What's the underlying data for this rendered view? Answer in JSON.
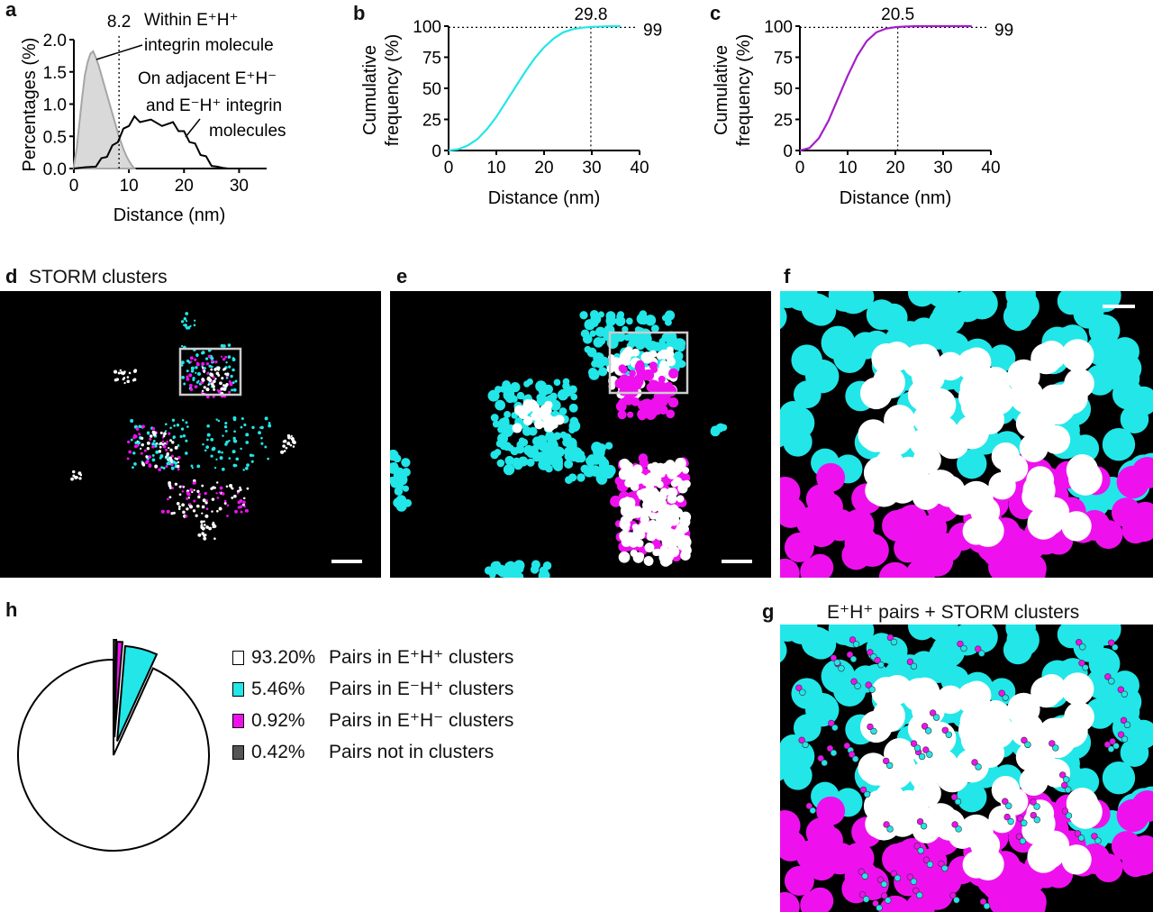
{
  "panel_labels": {
    "a": "a",
    "b": "b",
    "c": "c",
    "d": "d",
    "e": "e",
    "f": "f",
    "g": "g",
    "h": "h"
  },
  "panel_titles": {
    "d": "STORM clusters",
    "g": "E⁺H⁺ pairs + STORM clusters"
  },
  "colors": {
    "cyan": "#22e6e8",
    "magenta": "#ee11ee",
    "purple": "#a21ec9",
    "white": "#ffffff",
    "gray_fill": "#d9d9d9",
    "gray_line": "#a6a6a6",
    "dark": "#555555"
  },
  "chart_data": [
    {
      "id": "a",
      "type": "area",
      "xlabel": "Distance (nm)",
      "ylabel": "Percentages (%)",
      "xlim": [
        0,
        35
      ],
      "ylim": [
        0,
        2.0
      ],
      "xticks": [
        "0",
        "10",
        "20",
        "30"
      ],
      "yticks": [
        "0.0",
        "0.5",
        "1.0",
        "1.5",
        "2.0"
      ],
      "vline": 8.2,
      "vline_label": "8.2",
      "series": [
        {
          "name": "Within E⁺H⁺ integrin molecule",
          "name_lines": [
            "Within E⁺H⁺",
            "integrin molecule"
          ],
          "x": [
            0,
            0.5,
            1,
            1.5,
            2,
            2.5,
            3,
            3.5,
            4,
            4.5,
            5,
            5.5,
            6,
            6.5,
            7,
            7.5,
            8,
            8.5,
            9,
            9.5,
            10,
            10.5,
            11
          ],
          "y": [
            0.05,
            0.3,
            0.7,
            1.1,
            1.45,
            1.65,
            1.78,
            1.82,
            1.72,
            1.6,
            1.45,
            1.3,
            1.15,
            1.0,
            0.85,
            0.7,
            0.55,
            0.42,
            0.3,
            0.2,
            0.12,
            0.05,
            0.0
          ]
        },
        {
          "name": "On adjacent E⁺H⁻ and E⁻H⁺ integrin molecules",
          "name_lines": [
            "On adjacent E⁺H⁻",
            "and E⁻H⁺ integrin",
            "molecules"
          ],
          "x": [
            0,
            2,
            4,
            5,
            6,
            7,
            8,
            9,
            10,
            11,
            12,
            14,
            16,
            18,
            19,
            20,
            21,
            22,
            23,
            24,
            25,
            26,
            27,
            28
          ],
          "y": [
            0.0,
            0.02,
            0.07,
            0.12,
            0.22,
            0.32,
            0.45,
            0.58,
            0.7,
            0.77,
            0.76,
            0.72,
            0.7,
            0.68,
            0.62,
            0.54,
            0.45,
            0.35,
            0.25,
            0.15,
            0.08,
            0.03,
            0.01,
            0.0
          ]
        }
      ]
    },
    {
      "id": "b",
      "type": "line",
      "xlabel": "Distance (nm)",
      "ylabel_lines": [
        "Cumulative",
        "frequency (%)"
      ],
      "xlim": [
        0,
        40
      ],
      "ylim": [
        0,
        100
      ],
      "xticks": [
        "0",
        "10",
        "20",
        "30",
        "40"
      ],
      "yticks": [
        "0",
        "25",
        "50",
        "75",
        "100"
      ],
      "vline": 29.8,
      "vline_label": "29.8",
      "hline": 99,
      "hline_label": "99",
      "x": [
        0,
        2,
        4,
        6,
        8,
        10,
        12,
        14,
        16,
        18,
        20,
        22,
        24,
        26,
        28,
        30,
        32,
        34,
        36
      ],
      "y": [
        0,
        1,
        4,
        9,
        17,
        27,
        39,
        51,
        63,
        74,
        83,
        90,
        95,
        97.5,
        98.8,
        99.4,
        99.7,
        99.9,
        100
      ]
    },
    {
      "id": "c",
      "type": "line",
      "xlabel": "Distance (nm)",
      "ylabel_lines": [
        "Cumulative",
        "frequency (%)"
      ],
      "xlim": [
        0,
        40
      ],
      "ylim": [
        0,
        100
      ],
      "xticks": [
        "0",
        "10",
        "20",
        "30",
        "40"
      ],
      "yticks": [
        "0",
        "25",
        "50",
        "75",
        "100"
      ],
      "vline": 20.5,
      "vline_label": "20.5",
      "hline": 99,
      "hline_label": "99",
      "x": [
        0,
        2,
        4,
        6,
        8,
        10,
        12,
        14,
        16,
        18,
        20,
        22,
        24,
        28,
        32,
        36
      ],
      "y": [
        0,
        2,
        10,
        24,
        42,
        60,
        76,
        88,
        95,
        98,
        99.2,
        99.7,
        99.9,
        100,
        100,
        100
      ]
    },
    {
      "id": "h",
      "type": "pie",
      "slices": [
        {
          "pct": "93.20%",
          "label": "Pairs in E⁺H⁺ clusters",
          "value": 93.2,
          "color": "#ffffff"
        },
        {
          "pct": "5.46%",
          "label": "Pairs in E⁻H⁺ clusters",
          "value": 5.46,
          "color": "#22e6e8"
        },
        {
          "pct": "0.92%",
          "label": "Pairs in E⁺H⁻ clusters",
          "value": 0.92,
          "color": "#ee11ee"
        },
        {
          "pct": "0.42%",
          "label": "Pairs not in clusters",
          "value": 0.42,
          "color": "#555555"
        }
      ]
    }
  ]
}
